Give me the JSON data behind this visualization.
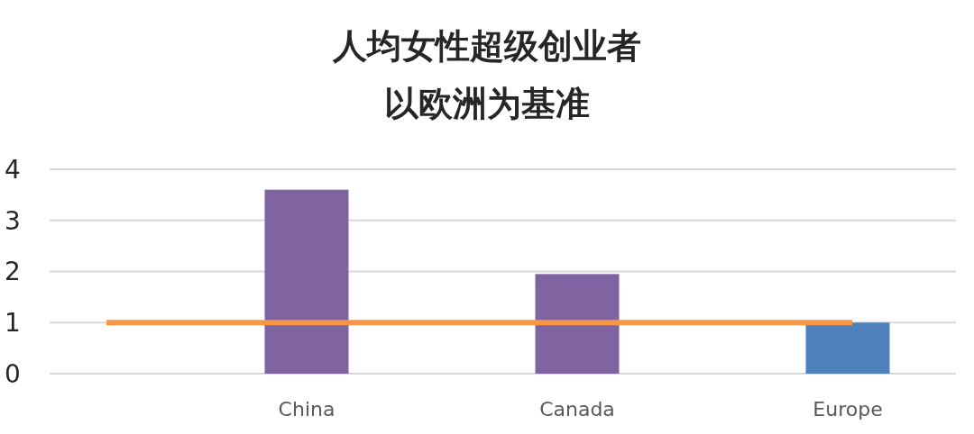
{
  "chart_data": {
    "type": "bar",
    "title": "人均女性超级创业者",
    "subtitle": "以欧洲为基准",
    "categories": [
      "China",
      "Canada",
      "Europe"
    ],
    "values": [
      3.6,
      1.95,
      1
    ],
    "colors": [
      "#8064a2",
      "#8064a2",
      "#4f81bd"
    ],
    "ylim": [
      0,
      4
    ],
    "yticks": [
      0,
      1,
      2,
      3,
      4
    ],
    "grid": "y",
    "ref_lines": [
      {
        "axis": "y",
        "value": 1,
        "color": "#f79646"
      }
    ]
  }
}
